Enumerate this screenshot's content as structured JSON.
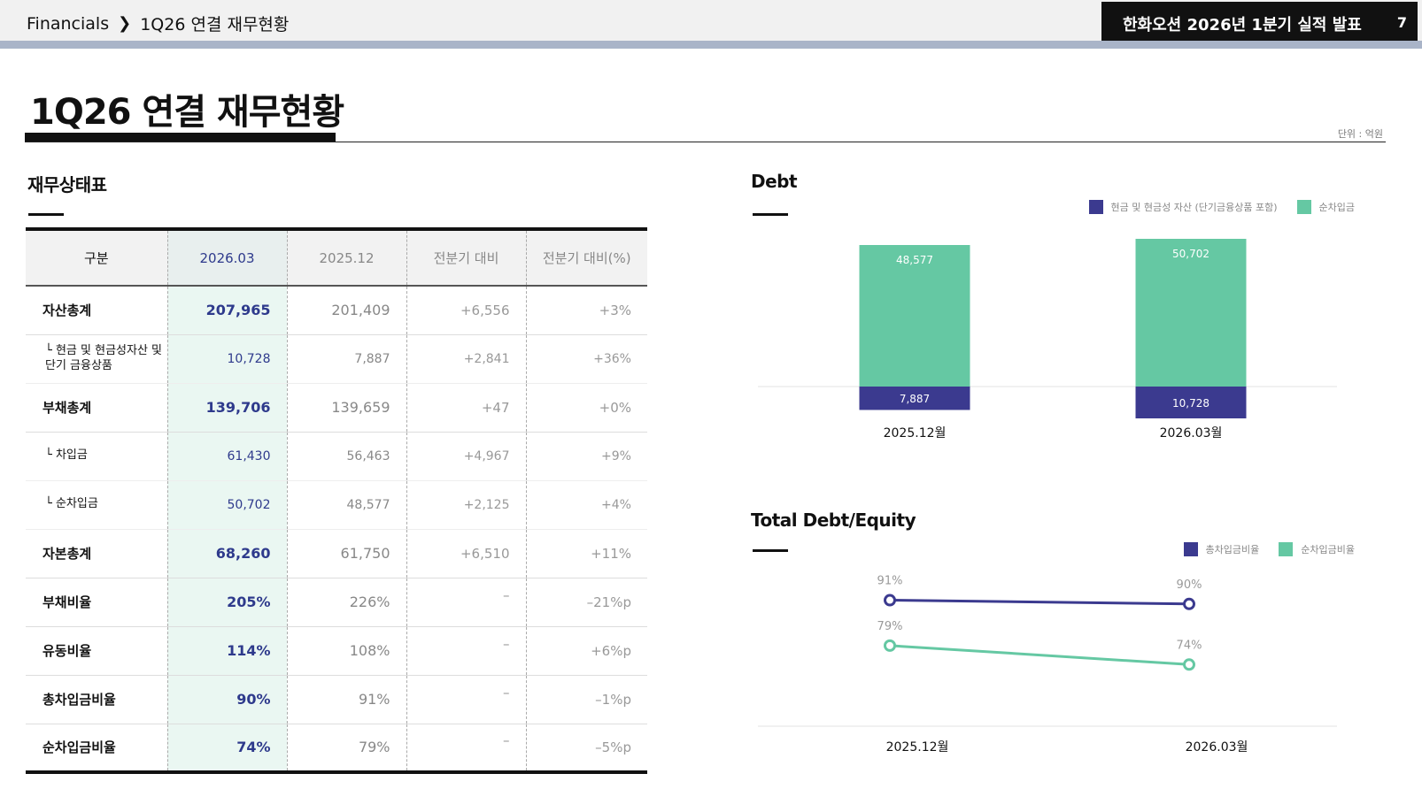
{
  "header": {
    "breadcrumb": [
      "Financials",
      "1Q26 연결 재무현황"
    ],
    "deck_title": "한화오션 2026년 1분기 실적 발표",
    "page_number": "7"
  },
  "page": {
    "title": "1Q26 연결 재무현황",
    "unit_note": "단위 : 억원"
  },
  "balance_sheet": {
    "title": "재무상태표",
    "columns": [
      "구분",
      "2026.03",
      "2025.12",
      "전분기 대비",
      "전분기 대비(%)"
    ],
    "rows": [
      {
        "label": "자산총계",
        "cur": "207,965",
        "prev": "201,409",
        "chg": "+6,556",
        "pct": "+3%",
        "sub": false
      },
      {
        "label": "└ 현금 및 현금성자산 및 단기 금융상품",
        "cur": "10,728",
        "prev": "7,887",
        "chg": "+2,841",
        "pct": "+36%",
        "sub": true
      },
      {
        "label": "부채총계",
        "cur": "139,706",
        "prev": "139,659",
        "chg": "+47",
        "pct": "+0%",
        "sub": false
      },
      {
        "label": "└ 차입금",
        "cur": "61,430",
        "prev": "56,463",
        "chg": "+4,967",
        "pct": "+9%",
        "sub": true
      },
      {
        "label": "└ 순차입금",
        "cur": "50,702",
        "prev": "48,577",
        "chg": "+2,125",
        "pct": "+4%",
        "sub": true
      },
      {
        "label": "자본총계",
        "cur": "68,260",
        "prev": "61,750",
        "chg": "+6,510",
        "pct": "+11%",
        "sub": false
      },
      {
        "label": "부채비율",
        "cur": "205%",
        "prev": "226%",
        "chg": "–",
        "pct": "–21%p",
        "sub": false
      },
      {
        "label": "유동비율",
        "cur": "114%",
        "prev": "108%",
        "chg": "–",
        "pct": "+6%p",
        "sub": false
      },
      {
        "label": "총차입금비율",
        "cur": "90%",
        "prev": "91%",
        "chg": "–",
        "pct": "–1%p",
        "sub": false
      },
      {
        "label": "순차입금비율",
        "cur": "74%",
        "prev": "79%",
        "chg": "–",
        "pct": "–5%p",
        "sub": false
      }
    ]
  },
  "colors": {
    "navy": "#3b3a8f",
    "green": "#65c8a3",
    "current_col_bg": "#eaf7f2"
  },
  "chart_data": [
    {
      "type": "bar",
      "stacked": true,
      "title": "Debt",
      "categories": [
        "2025.12월",
        "2026.03월"
      ],
      "series": [
        {
          "name": "현금 및 현금성 자산 (단기금융상품 포함)",
          "values": [
            7887,
            10728
          ],
          "labels": [
            "7,887",
            "10,728"
          ],
          "color": "#3b3a8f",
          "direction": "below-baseline"
        },
        {
          "name": "순차입금",
          "values": [
            48577,
            50702
          ],
          "labels": [
            "48,577",
            "50,702"
          ],
          "color": "#65c8a3",
          "direction": "above-baseline"
        }
      ],
      "legend_position": "top-right",
      "grid": false
    },
    {
      "type": "line",
      "title": "Total Debt/Equity",
      "categories": [
        "2025.12월",
        "2026.03월"
      ],
      "series": [
        {
          "name": "총차입금비율",
          "values": [
            91,
            90
          ],
          "labels": [
            "91%",
            "90%"
          ],
          "color": "#3b3a8f"
        },
        {
          "name": "순차입금비율",
          "values": [
            79,
            74
          ],
          "labels": [
            "79%",
            "74%"
          ],
          "color": "#65c8a3"
        }
      ],
      "ylim": [
        50,
        100
      ],
      "legend_position": "top-right",
      "grid": false
    }
  ]
}
